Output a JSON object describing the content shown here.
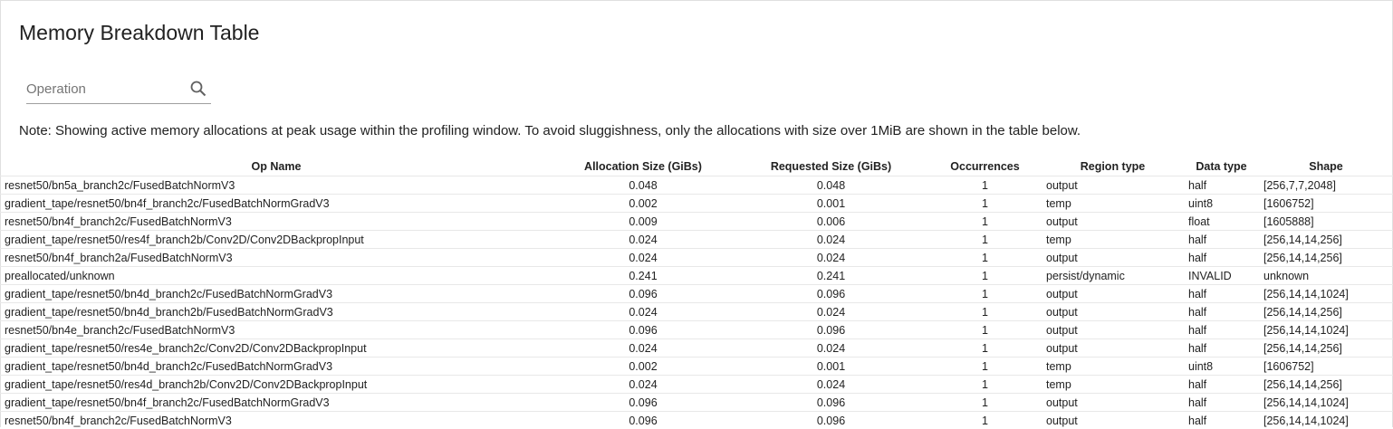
{
  "title": "Memory Breakdown Table",
  "search": {
    "placeholder": "Operation",
    "icon": "search-icon"
  },
  "note": "Note: Showing active memory allocations at peak usage within the profiling window. To avoid sluggishness, only the allocations with size over 1MiB are shown in the table below.",
  "table": {
    "headers": [
      "Op Name",
      "Allocation Size (GiBs)",
      "Requested Size (GiBs)",
      "Occurrences",
      "Region type",
      "Data type",
      "Shape"
    ],
    "rows": [
      [
        "resnet50/bn5a_branch2c/FusedBatchNormV3",
        "0.048",
        "0.048",
        "1",
        "output",
        "half",
        "[256,7,7,2048]"
      ],
      [
        "gradient_tape/resnet50/bn4f_branch2c/FusedBatchNormGradV3",
        "0.002",
        "0.001",
        "1",
        "temp",
        "uint8",
        "[1606752]"
      ],
      [
        "resnet50/bn4f_branch2c/FusedBatchNormV3",
        "0.009",
        "0.006",
        "1",
        "output",
        "float",
        "[1605888]"
      ],
      [
        "gradient_tape/resnet50/res4f_branch2b/Conv2D/Conv2DBackpropInput",
        "0.024",
        "0.024",
        "1",
        "temp",
        "half",
        "[256,14,14,256]"
      ],
      [
        "resnet50/bn4f_branch2a/FusedBatchNormV3",
        "0.024",
        "0.024",
        "1",
        "output",
        "half",
        "[256,14,14,256]"
      ],
      [
        "preallocated/unknown",
        "0.241",
        "0.241",
        "1",
        "persist/dynamic",
        "INVALID",
        "unknown"
      ],
      [
        "gradient_tape/resnet50/bn4d_branch2c/FusedBatchNormGradV3",
        "0.096",
        "0.096",
        "1",
        "output",
        "half",
        "[256,14,14,1024]"
      ],
      [
        "gradient_tape/resnet50/bn4d_branch2b/FusedBatchNormGradV3",
        "0.024",
        "0.024",
        "1",
        "output",
        "half",
        "[256,14,14,256]"
      ],
      [
        "resnet50/bn4e_branch2c/FusedBatchNormV3",
        "0.096",
        "0.096",
        "1",
        "output",
        "half",
        "[256,14,14,1024]"
      ],
      [
        "gradient_tape/resnet50/res4e_branch2c/Conv2D/Conv2DBackpropInput",
        "0.024",
        "0.024",
        "1",
        "output",
        "half",
        "[256,14,14,256]"
      ],
      [
        "gradient_tape/resnet50/bn4d_branch2c/FusedBatchNormGradV3",
        "0.002",
        "0.001",
        "1",
        "temp",
        "uint8",
        "[1606752]"
      ],
      [
        "gradient_tape/resnet50/res4d_branch2b/Conv2D/Conv2DBackpropInput",
        "0.024",
        "0.024",
        "1",
        "temp",
        "half",
        "[256,14,14,256]"
      ],
      [
        "gradient_tape/resnet50/bn4f_branch2c/FusedBatchNormGradV3",
        "0.096",
        "0.096",
        "1",
        "output",
        "half",
        "[256,14,14,1024]"
      ],
      [
        "resnet50/bn4f_branch2c/FusedBatchNormV3",
        "0.096",
        "0.096",
        "1",
        "output",
        "half",
        "[256,14,14,1024]"
      ]
    ]
  }
}
